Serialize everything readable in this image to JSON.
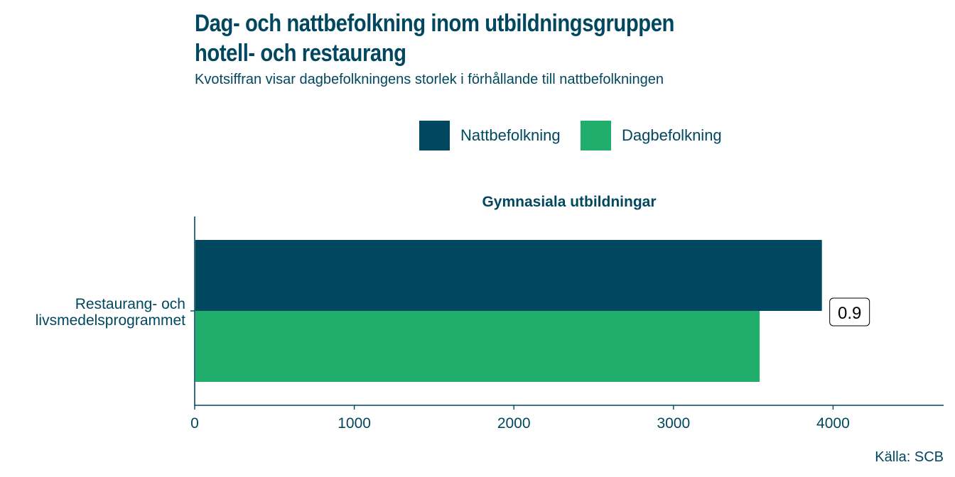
{
  "title_line1": "Dag- och nattbefolkning inom utbildningsgruppen",
  "title_line2": "hotell- och restaurang",
  "subtitle": "Kvotsiffran visar dagbefolkningens storlek i förhållande till nattbefolkningen",
  "caption": "Källa: SCB",
  "colors": {
    "natt": "#00475f",
    "dag": "#21ad6b",
    "text": "#00475f"
  },
  "chart_data": {
    "type": "bar",
    "orientation": "horizontal",
    "panel_title": "Gymnasiala utbildningar",
    "categories": [
      "Restaurang- och livsmedelsprogrammet"
    ],
    "category_label_lines": [
      [
        "Restaurang- och",
        "livsmedelsprogrammet"
      ]
    ],
    "series": [
      {
        "name": "Nattbefolkning",
        "values": [
          3930
        ]
      },
      {
        "name": "Dagbefolkning",
        "values": [
          3540
        ]
      }
    ],
    "ratio_labels": [
      "0.9"
    ],
    "xlim": [
      0,
      4700
    ],
    "xticks": [
      0,
      1000,
      2000,
      3000,
      4000
    ],
    "legend_position": "top"
  }
}
